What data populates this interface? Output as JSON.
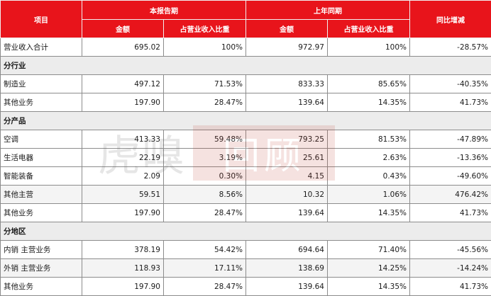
{
  "header": {
    "item": "项目",
    "current_period": "本报告期",
    "last_year": "上年同期",
    "yoy": "同比增减",
    "amount": "金额",
    "ratio": "占营业收入比重"
  },
  "total": {
    "label": "营业收入合计",
    "cur_amount": "695.02",
    "cur_ratio": "100%",
    "prev_amount": "972.97",
    "prev_ratio": "100%",
    "yoy": "-28.57%"
  },
  "sections": [
    {
      "title": "分行业",
      "rows": [
        {
          "label": "制造业",
          "cur_amount": "497.12",
          "cur_ratio": "71.53%",
          "prev_amount": "833.33",
          "prev_ratio": "85.65%",
          "yoy": "-40.35%"
        },
        {
          "label": "其他业务",
          "cur_amount": "197.90",
          "cur_ratio": "28.47%",
          "prev_amount": "139.64",
          "prev_ratio": "14.35%",
          "yoy": "41.73%"
        }
      ]
    },
    {
      "title": "分产品",
      "rows": [
        {
          "label": "空调",
          "cur_amount": "413.33",
          "cur_ratio": "59.48%",
          "prev_amount": "793.25",
          "prev_ratio": "81.53%",
          "yoy": "-47.89%"
        },
        {
          "label": "生活电器",
          "cur_amount": "22.19",
          "cur_ratio": "3.19%",
          "prev_amount": "25.61",
          "prev_ratio": "2.63%",
          "yoy": "-13.36%"
        },
        {
          "label": "智能装备",
          "cur_amount": "2.09",
          "cur_ratio": "0.30%",
          "prev_amount": "4.15",
          "prev_ratio": "0.43%",
          "yoy": "-49.60%"
        },
        {
          "label": "其他主营",
          "cur_amount": "59.51",
          "cur_ratio": "8.56%",
          "prev_amount": "10.32",
          "prev_ratio": "1.06%",
          "yoy": "476.42%"
        },
        {
          "label": "其他业务",
          "cur_amount": "197.90",
          "cur_ratio": "28.47%",
          "prev_amount": "139.64",
          "prev_ratio": "14.35%",
          "yoy": "41.73%"
        }
      ]
    },
    {
      "title": "分地区",
      "rows": [
        {
          "label": "内销 主营业务",
          "cur_amount": "378.19",
          "cur_ratio": "54.42%",
          "prev_amount": "694.64",
          "prev_ratio": "71.40%",
          "yoy": "-45.56%"
        },
        {
          "label": "外销 主营业务",
          "cur_amount": "118.93",
          "cur_ratio": "17.11%",
          "prev_amount": "138.69",
          "prev_ratio": "14.25%",
          "yoy": "-14.24%"
        },
        {
          "label": "其他业务",
          "cur_amount": "197.90",
          "cur_ratio": "28.47%",
          "prev_amount": "139.64",
          "prev_ratio": "14.35%",
          "yoy": "41.73%"
        }
      ]
    }
  ],
  "watermark": {
    "text": "虎嗅",
    "box_text": "回顾"
  },
  "colors": {
    "header_bg": "#e8141b",
    "section_bg": "#ececec"
  }
}
